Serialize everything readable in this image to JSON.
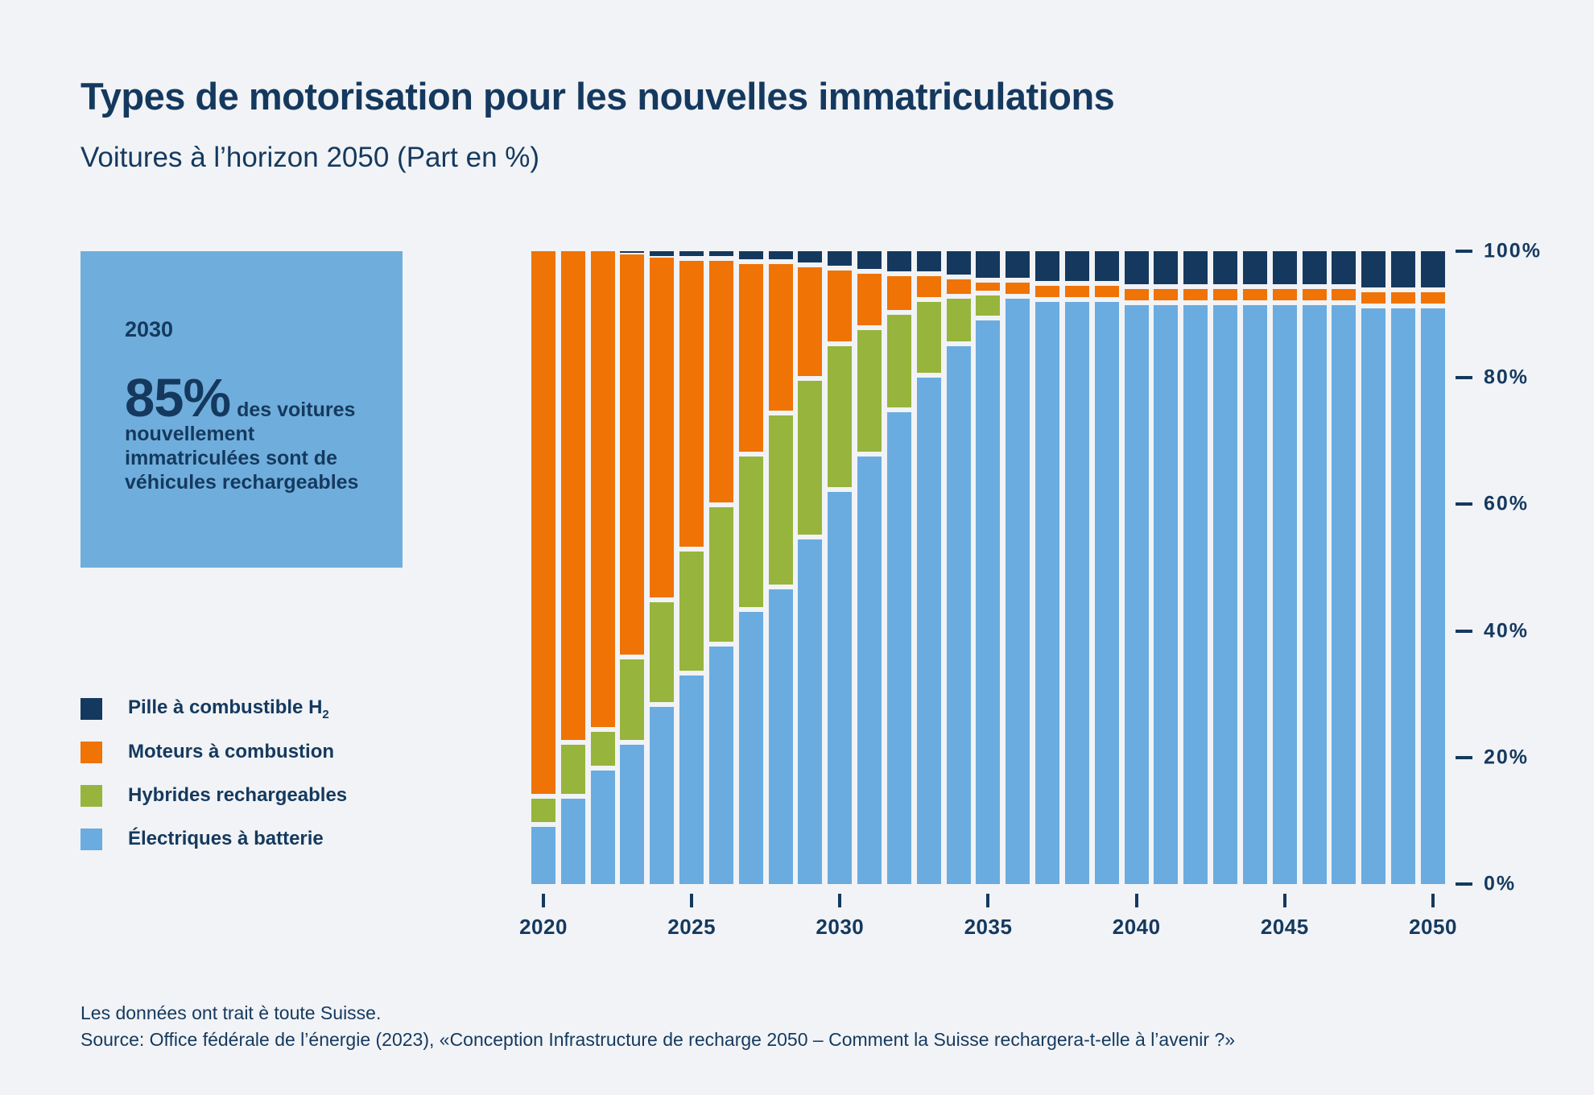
{
  "header": {
    "title": "Types de motorisation pour les nouvelles immatriculations",
    "subtitle": "Voitures à l’horizon 2050 (Part en %)"
  },
  "infobox": {
    "background_color": "#6FAEDC",
    "year": "2030",
    "big_value": "85%",
    "text_inline": "des voitures",
    "text_rest": "nouvellement immatriculées sont de véhicules rechargeables"
  },
  "legend": {
    "items": [
      {
        "label": "Pille à combustible H",
        "label_sub": "2",
        "color": "#15395E"
      },
      {
        "label": "Moteurs à combustion",
        "label_sub": "",
        "color": "#EF7305"
      },
      {
        "label": "Hybrides rechargeables",
        "label_sub": "",
        "color": "#97B43D"
      },
      {
        "label": "Électriques à batterie",
        "label_sub": "",
        "color": "#6AACDF"
      }
    ]
  },
  "footer": {
    "line1": "Les données ont trait è toute Suisse.",
    "line2": "Source: Office fédérale de l’énergie (2023), «Conception Infrastructure de recharge 2050 – Comment la Suisse rechargera-t-elle à l’avenir ?»"
  },
  "colors": {
    "background": "#F1F3F6",
    "text_navy": "#15395E",
    "h2_navy": "#15395E",
    "combustion_orange": "#EF7305",
    "hybrid_green": "#97B43D",
    "battery_blue": "#6AACDF"
  },
  "chart_data": {
    "type": "bar",
    "stacked": true,
    "title": "Types de motorisation pour les nouvelles immatriculations",
    "subtitle": "Voitures à l’horizon 2050 (Part en %)",
    "unit": "%",
    "ylim": [
      0,
      100
    ],
    "grid": false,
    "legend_position": "left",
    "x": [
      2020,
      2021,
      2022,
      2023,
      2024,
      2025,
      2026,
      2027,
      2028,
      2029,
      2030,
      2031,
      2032,
      2033,
      2034,
      2035,
      2036,
      2037,
      2038,
      2039,
      2040,
      2041,
      2042,
      2043,
      2044,
      2045,
      2046,
      2047,
      2048,
      2049,
      2050
    ],
    "x_ticks": [
      2020,
      2025,
      2030,
      2035,
      2040,
      2045,
      2050
    ],
    "y_ticks": [
      {
        "label": "0%",
        "value": 0
      },
      {
        "label": "20%",
        "value": 20
      },
      {
        "label": "40%",
        "value": 40
      },
      {
        "label": "60%",
        "value": 60
      },
      {
        "label": "80%",
        "value": 80
      },
      {
        "label": "100%",
        "value": 100
      }
    ],
    "series": [
      {
        "name": "Électriques à batterie",
        "color": "#6AACDF",
        "values": [
          9,
          13.5,
          18,
          22,
          28,
          33,
          37.5,
          43,
          46.5,
          54.5,
          62,
          67.5,
          74.5,
          80,
          85,
          89,
          92.5,
          92,
          92,
          92,
          91.5,
          91.5,
          91.5,
          91.5,
          91.5,
          91.5,
          91.5,
          91.5,
          91,
          91,
          91
        ]
      },
      {
        "name": "Hybrides rechargeables",
        "color": "#97B43D",
        "values": [
          4.5,
          8.5,
          6,
          13.5,
          16.5,
          19.5,
          22,
          24.5,
          27.5,
          25,
          23,
          20,
          15.5,
          12,
          7.5,
          4,
          0,
          0,
          0,
          0,
          0,
          0,
          0,
          0,
          0,
          0,
          0,
          0,
          0,
          0,
          0
        ]
      },
      {
        "name": "Moteurs à combustion",
        "color": "#EF7305",
        "values": [
          86.5,
          78,
          76,
          64,
          54.5,
          46,
          39,
          30.5,
          24,
          18,
          12,
          9,
          6,
          4,
          3,
          2,
          2.5,
          2.5,
          2.5,
          2.5,
          2.5,
          2.5,
          2.5,
          2.5,
          2.5,
          2.5,
          2.5,
          2.5,
          2.5,
          2.5,
          2.5
        ]
      },
      {
        "name": "Pille à combustible H2",
        "color": "#15395E",
        "values": [
          0,
          0,
          0,
          0.5,
          1,
          1.5,
          1.5,
          2,
          2,
          2.5,
          3,
          3.5,
          4,
          4,
          4.5,
          5,
          5,
          5.5,
          5.5,
          5.5,
          6,
          6,
          6,
          6,
          6,
          6,
          6,
          6,
          6.5,
          6.5,
          6.5
        ]
      }
    ]
  },
  "annotation_note": "Part des voitures nouvellement immatriculées rechargeables en 2030: 85%"
}
